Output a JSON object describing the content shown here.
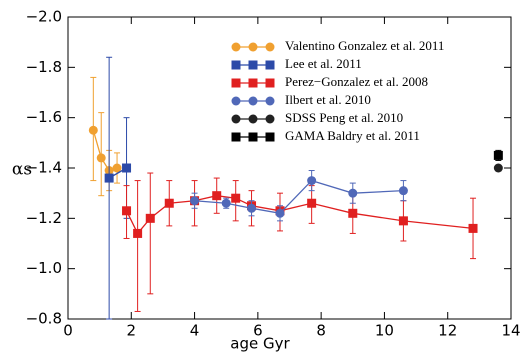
{
  "chart_data": {
    "type": "errorbar",
    "xlabel": "age Gyr",
    "ylabel": "αs",
    "xlim": [
      0,
      14
    ],
    "xticks": [
      0,
      2,
      4,
      6,
      8,
      10,
      12,
      14
    ],
    "ylim": [
      -0.8,
      -2.0
    ],
    "yticks": [
      {
        "value": -0.8,
        "label": "−0.8"
      },
      {
        "value": -1.0,
        "label": "−1.0"
      },
      {
        "value": -1.2,
        "label": "−1.2"
      },
      {
        "value": -1.4,
        "label": "−1.4"
      },
      {
        "value": -1.6,
        "label": "−1.6"
      },
      {
        "value": -1.8,
        "label": "−1.8"
      },
      {
        "value": -2.0,
        "label": "−2.0"
      }
    ],
    "series": [
      {
        "name": "Valentino Gonzalez et al. 2011",
        "color": "#f0a030",
        "marker": "circle",
        "x": [
          0.8,
          1.05,
          1.3,
          1.55
        ],
        "values": [
          -1.55,
          -1.44,
          -1.39,
          -1.4
        ],
        "yerr": [
          [
            0.21,
            0.2
          ],
          [
            0.18,
            0.15
          ],
          [
            0.08,
            0.08
          ],
          [
            0.06,
            0.06
          ]
        ]
      },
      {
        "name": "Lee et al. 2011",
        "color": "#2c4aa8",
        "marker": "square",
        "x": [
          1.3,
          1.85
        ],
        "values": [
          -1.36,
          -1.4
        ],
        "yerr": [
          [
            0.48,
            0.56
          ],
          [
            0.2,
            0.2
          ]
        ]
      },
      {
        "name": "Perez−Gonzalez et al. 2008",
        "color": "#e02020",
        "marker": "square",
        "x": [
          1.85,
          2.2,
          2.6,
          3.2,
          4.0,
          4.7,
          5.3,
          5.8,
          6.7,
          7.7,
          9.0,
          10.6,
          12.8
        ],
        "values": [
          -1.23,
          -1.14,
          -1.2,
          -1.26,
          -1.27,
          -1.29,
          -1.28,
          -1.25,
          -1.23,
          -1.26,
          -1.22,
          -1.19,
          -1.16
        ],
        "yerr": [
          [
            0.1,
            0.11
          ],
          [
            0.21,
            0.31
          ],
          [
            0.18,
            0.3
          ],
          [
            0.09,
            0.09
          ],
          [
            0.08,
            0.1
          ],
          [
            0.07,
            0.07
          ],
          [
            0.07,
            0.09
          ],
          [
            0.06,
            0.08
          ],
          [
            0.07,
            0.08
          ],
          [
            0.07,
            0.08
          ],
          [
            0.08,
            0.08
          ],
          [
            0.08,
            0.08
          ],
          [
            0.12,
            0.12
          ]
        ]
      },
      {
        "name": "Ilbert et al. 2010",
        "color": "#5068b8",
        "marker": "circle",
        "x": [
          4.0,
          5.0,
          5.8,
          6.7,
          7.7,
          9.0,
          10.6
        ],
        "values": [
          -1.27,
          -1.26,
          -1.24,
          -1.22,
          -1.35,
          -1.3,
          -1.31
        ],
        "yerr": [
          [
            0.03,
            0.03
          ],
          [
            0.02,
            0.02
          ],
          [
            0.03,
            0.03
          ],
          [
            0.03,
            0.03
          ],
          [
            0.04,
            0.04
          ],
          [
            0.04,
            0.04
          ],
          [
            0.04,
            0.04
          ]
        ]
      },
      {
        "name": "SDSS Peng et al. 2010",
        "color": "#222222",
        "marker": "circle",
        "x": [
          13.6
        ],
        "values": [
          -1.4
        ],
        "yerr": [
          [
            0.01,
            0.01
          ]
        ]
      },
      {
        "name": "GAMA Baldry et al. 2011",
        "color": "#000000",
        "marker": "square",
        "x": [
          13.6
        ],
        "values": [
          -1.45
        ],
        "yerr": [
          [
            0.02,
            0.02
          ]
        ]
      }
    ]
  }
}
